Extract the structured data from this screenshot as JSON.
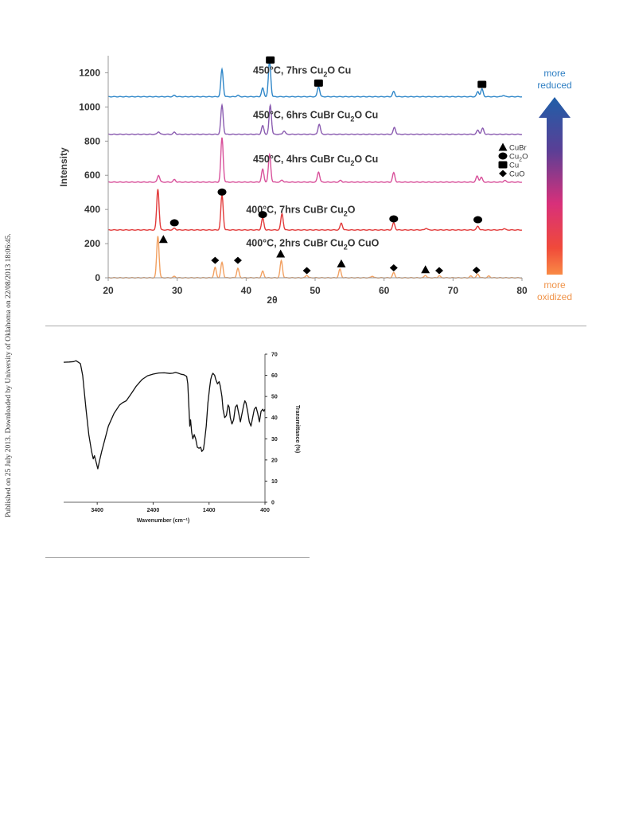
{
  "watermark": "Published on 25 July 2013. Downloaded by University of Oklahoma on 22/08/2013 18:06:45.",
  "colors": {
    "t450_7": "#2e86c8",
    "t450_6": "#8a5bb0",
    "t450_4": "#d8509a",
    "t400_7": "#e23a3a",
    "t400_2": "#f2a060",
    "reduced_text": "#2f7fc3",
    "oxidized_text": "#f0944a",
    "ir_line": "#111111",
    "rule": "#aaaaaa"
  },
  "chart_data": [
    {
      "type": "line",
      "xlabel": "2θ",
      "ylabel": "Intensity",
      "xlim": [
        20,
        80
      ],
      "ylim": [
        0,
        1300
      ],
      "xticks": [
        "20",
        "30",
        "40",
        "50",
        "60",
        "70",
        "80"
      ],
      "yticks": [
        "0",
        "200",
        "400",
        "600",
        "800",
        "1000",
        "1200"
      ],
      "grid": false,
      "series": [
        {
          "id": "t400_2",
          "name": "400°C, 2hrs  CuBr  Cu2O  CuO",
          "label_pre": "400°C, 2hrs  CuBr  Cu",
          "label_sub": "2",
          "label_post": "O  CuO",
          "label_xy": [
            40,
            183
          ],
          "baseline": 0,
          "peaks": [
            [
              27.2,
              245
            ],
            [
              29.6,
              8
            ],
            [
              35.5,
              60
            ],
            [
              36.5,
              90
            ],
            [
              38.8,
              55
            ],
            [
              42.4,
              38
            ],
            [
              45.1,
              100
            ],
            [
              48.8,
              15
            ],
            [
              53.6,
              50
            ],
            [
              58.3,
              10
            ],
            [
              61.4,
              30
            ],
            [
              66.0,
              15
            ],
            [
              68.0,
              12
            ],
            [
              72.6,
              10
            ],
            [
              73.6,
              22
            ],
            [
              75.2,
              10
            ]
          ]
        },
        {
          "id": "t400_7",
          "name": "400°C, 7hrs  CuBr  Cu2O",
          "label_pre": "400°C, 7hrs  CuBr  Cu",
          "label_sub": "2",
          "label_post": "O",
          "label_xy": [
            40,
            380
          ],
          "baseline": 280,
          "peaks": [
            [
              27.2,
              240
            ],
            [
              29.6,
              10
            ],
            [
              36.5,
              205
            ],
            [
              42.4,
              70
            ],
            [
              45.2,
              95
            ],
            [
              53.8,
              40
            ],
            [
              61.4,
              42
            ],
            [
              66.1,
              10
            ],
            [
              73.6,
              22
            ],
            [
              77.4,
              8
            ]
          ]
        },
        {
          "id": "t450_4",
          "name": "450°C, 4hrs  CuBr  Cu2O  Cu",
          "label_pre": "450°C, 4hrs  CuBr  Cu",
          "label_sub": "2",
          "label_post": "O  Cu",
          "label_xy": [
            41,
            675
          ],
          "baseline": 560,
          "peaks": [
            [
              27.3,
              40
            ],
            [
              29.6,
              15
            ],
            [
              36.5,
              260
            ],
            [
              42.4,
              75
            ],
            [
              43.4,
              160
            ],
            [
              45.2,
              12
            ],
            [
              50.5,
              60
            ],
            [
              53.7,
              10
            ],
            [
              61.4,
              55
            ],
            [
              73.5,
              35
            ],
            [
              74.1,
              28
            ],
            [
              77.5,
              10
            ]
          ]
        },
        {
          "id": "t450_6",
          "name": "450°C, 6hrs  CuBr  Cu2O  Cu",
          "label_pre": "450°C, 6hrs  CuBr  Cu",
          "label_sub": "2",
          "label_post": "O  Cu",
          "label_xy": [
            41,
            935
          ],
          "baseline": 840,
          "peaks": [
            [
              27.3,
              15
            ],
            [
              29.6,
              12
            ],
            [
              36.5,
              170
            ],
            [
              42.4,
              50
            ],
            [
              43.5,
              170
            ],
            [
              45.5,
              20
            ],
            [
              50.6,
              60
            ],
            [
              61.5,
              40
            ],
            [
              73.6,
              25
            ],
            [
              74.3,
              35
            ]
          ]
        },
        {
          "id": "t450_7",
          "name": "450°C, 7hrs  Cu2O  Cu",
          "label_pre": "450°C, 7hrs  Cu",
          "label_sub": "2",
          "label_post": "O  Cu",
          "label_xy": [
            41,
            1195
          ],
          "baseline": 1060,
          "peaks": [
            [
              29.6,
              8
            ],
            [
              36.5,
              160
            ],
            [
              38.8,
              8
            ],
            [
              42.4,
              50
            ],
            [
              43.4,
              210
            ],
            [
              50.5,
              60
            ],
            [
              61.4,
              30
            ],
            [
              73.6,
              30
            ],
            [
              74.2,
              45
            ],
            [
              77.3,
              8
            ]
          ]
        }
      ],
      "markers": [
        {
          "shape": "triangle",
          "x": 28.0,
          "y": 225
        },
        {
          "shape": "triangle",
          "x": 45.0,
          "y": 140
        },
        {
          "shape": "triangle",
          "x": 53.8,
          "y": 82
        },
        {
          "shape": "triangle",
          "x": 66.0,
          "y": 48
        },
        {
          "shape": "diamond",
          "x": 35.5,
          "y": 102
        },
        {
          "shape": "diamond",
          "x": 38.8,
          "y": 102
        },
        {
          "shape": "diamond",
          "x": 48.8,
          "y": 42
        },
        {
          "shape": "diamond",
          "x": 61.4,
          "y": 58
        },
        {
          "shape": "diamond",
          "x": 68.0,
          "y": 42
        },
        {
          "shape": "diamond",
          "x": 73.4,
          "y": 44
        },
        {
          "shape": "circle",
          "x": 29.6,
          "y": 322
        },
        {
          "shape": "circle",
          "x": 36.5,
          "y": 502
        },
        {
          "shape": "circle",
          "x": 42.4,
          "y": 370
        },
        {
          "shape": "circle",
          "x": 61.4,
          "y": 345
        },
        {
          "shape": "circle",
          "x": 73.6,
          "y": 340
        },
        {
          "shape": "square",
          "x": 43.5,
          "y": 1275
        },
        {
          "shape": "square",
          "x": 50.5,
          "y": 1140
        },
        {
          "shape": "square",
          "x": 74.2,
          "y": 1132
        }
      ],
      "legend": {
        "placement": "right",
        "items": [
          {
            "shape": "triangle",
            "pre": "CuBr",
            "sub": "",
            "post": ""
          },
          {
            "shape": "circle",
            "pre": "Cu",
            "sub": "2",
            "post": "O"
          },
          {
            "shape": "square",
            "pre": "Cu",
            "sub": "",
            "post": ""
          },
          {
            "shape": "diamond",
            "pre": "CuO",
            "sub": "",
            "post": ""
          }
        ]
      },
      "arrow": {
        "top_label": [
          "more",
          "reduced"
        ],
        "bottom_label": [
          "more",
          "oxidized"
        ]
      }
    },
    {
      "type": "line",
      "xlabel": "Wavenumber (cm⁻¹)",
      "ylabel": "Transmittance (%)",
      "xlim": [
        4000,
        400
      ],
      "xlim_reversed": true,
      "ylim": [
        0,
        70
      ],
      "xticks": [
        "3400",
        "2400",
        "1400",
        "400"
      ],
      "xtick_values": [
        3400,
        2400,
        1400,
        400
      ],
      "yticks": [
        "0",
        "10",
        "20",
        "30",
        "40",
        "50",
        "60",
        "70"
      ],
      "yaxis_side": "right",
      "grid": false,
      "series": [
        {
          "name": "",
          "points": [
            [
              4000,
              66.2
            ],
            [
              3900,
              66.3
            ],
            [
              3820,
              66.5
            ],
            [
              3780,
              66.9
            ],
            [
              3730,
              66.1
            ],
            [
              3700,
              65.5
            ],
            [
              3660,
              60
            ],
            [
              3600,
              44
            ],
            [
              3550,
              32
            ],
            [
              3500,
              24
            ],
            [
              3470,
              20.5
            ],
            [
              3450,
              22
            ],
            [
              3420,
              19
            ],
            [
              3390,
              15.8
            ],
            [
              3360,
              19.5
            ],
            [
              3320,
              24
            ],
            [
              3260,
              30
            ],
            [
              3200,
              36
            ],
            [
              3100,
              42
            ],
            [
              3000,
              46
            ],
            [
              2950,
              47
            ],
            [
              2880,
              48
            ],
            [
              2800,
              51
            ],
            [
              2700,
              55
            ],
            [
              2600,
              58
            ],
            [
              2500,
              59.8
            ],
            [
              2400,
              60.6
            ],
            [
              2300,
              61.1
            ],
            [
              2200,
              61.2
            ],
            [
              2100,
              60.9
            ],
            [
              2050,
              61.0
            ],
            [
              2000,
              61.4
            ],
            [
              1950,
              61.0
            ],
            [
              1900,
              60.5
            ],
            [
              1850,
              60.3
            ],
            [
              1800,
              59.5
            ],
            [
              1780,
              56
            ],
            [
              1760,
              45
            ],
            [
              1745,
              36
            ],
            [
              1730,
              39
            ],
            [
              1710,
              33
            ],
            [
              1690,
              30
            ],
            [
              1665,
              32
            ],
            [
              1640,
              30
            ],
            [
              1610,
              26
            ],
            [
              1580,
              25.5
            ],
            [
              1550,
              26
            ],
            [
              1530,
              24
            ],
            [
              1500,
              25
            ],
            [
              1480,
              29
            ],
            [
              1450,
              36
            ],
            [
              1420,
              47
            ],
            [
              1390,
              54
            ],
            [
              1370,
              58
            ],
            [
              1350,
              60
            ],
            [
              1330,
              61
            ],
            [
              1300,
              60
            ],
            [
              1280,
              58
            ],
            [
              1250,
              56
            ],
            [
              1220,
              57
            ],
            [
              1200,
              55
            ],
            [
              1170,
              50
            ],
            [
              1150,
              44
            ],
            [
              1120,
              40
            ],
            [
              1090,
              41
            ],
            [
              1060,
              46
            ],
            [
              1040,
              45
            ],
            [
              1020,
              40
            ],
            [
              990,
              37
            ],
            [
              960,
              39
            ],
            [
              930,
              45
            ],
            [
              900,
              46
            ],
            [
              870,
              42
            ],
            [
              840,
              38
            ],
            [
              810,
              42
            ],
            [
              780,
              46
            ],
            [
              760,
              48
            ],
            [
              740,
              47
            ],
            [
              710,
              43
            ],
            [
              680,
              38
            ],
            [
              650,
              36
            ],
            [
              620,
              40
            ],
            [
              590,
              44
            ],
            [
              560,
              45
            ],
            [
              530,
              42
            ],
            [
              500,
              38
            ],
            [
              470,
              43
            ],
            [
              440,
              44
            ],
            [
              420,
              43
            ],
            [
              400,
              44
            ]
          ]
        }
      ]
    }
  ]
}
